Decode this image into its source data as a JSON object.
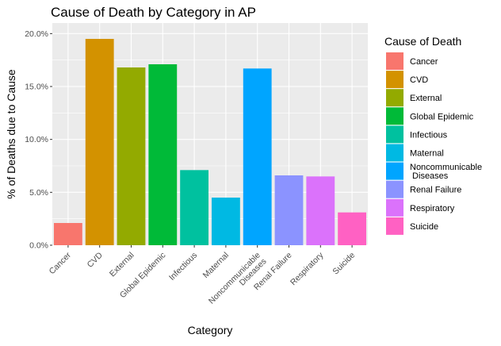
{
  "chart_data": {
    "type": "bar",
    "title": "Cause of Death by Category in AP",
    "xlabel": "Category",
    "ylabel": "% of Deaths due to Cause",
    "categories": [
      "Cancer",
      "CVD",
      "External",
      "Global Epidemic",
      "Infectious",
      "Maternal",
      "Noncommunicable\nDiseases",
      "Renal Failure",
      "Respiratory",
      "Suicide"
    ],
    "values": [
      2.1,
      19.5,
      16.8,
      17.1,
      7.1,
      4.5,
      16.7,
      6.6,
      6.5,
      3.1
    ],
    "colors": [
      "#F8766D",
      "#D39200",
      "#93AA00",
      "#00BA38",
      "#00C19F",
      "#00B9E3",
      "#00A5FF",
      "#8B93FF",
      "#DB72FB",
      "#FF61C3"
    ],
    "ylim": [
      0,
      21.0
    ],
    "yticks": [
      0,
      5,
      10,
      15,
      20
    ],
    "ytick_labels": [
      "0.0%",
      "5.0%",
      "10.0%",
      "15.0%",
      "20.0%"
    ],
    "grid": true,
    "legend": {
      "title": "Cause of Death",
      "position": "right",
      "entries": [
        "Cancer",
        "CVD",
        "External",
        "Global Epidemic",
        "Infectious",
        "Maternal",
        "Noncommunicable\n Diseases",
        "Renal Failure",
        "Respiratory",
        "Suicide"
      ]
    },
    "panel_background": "#EBEBEB"
  }
}
